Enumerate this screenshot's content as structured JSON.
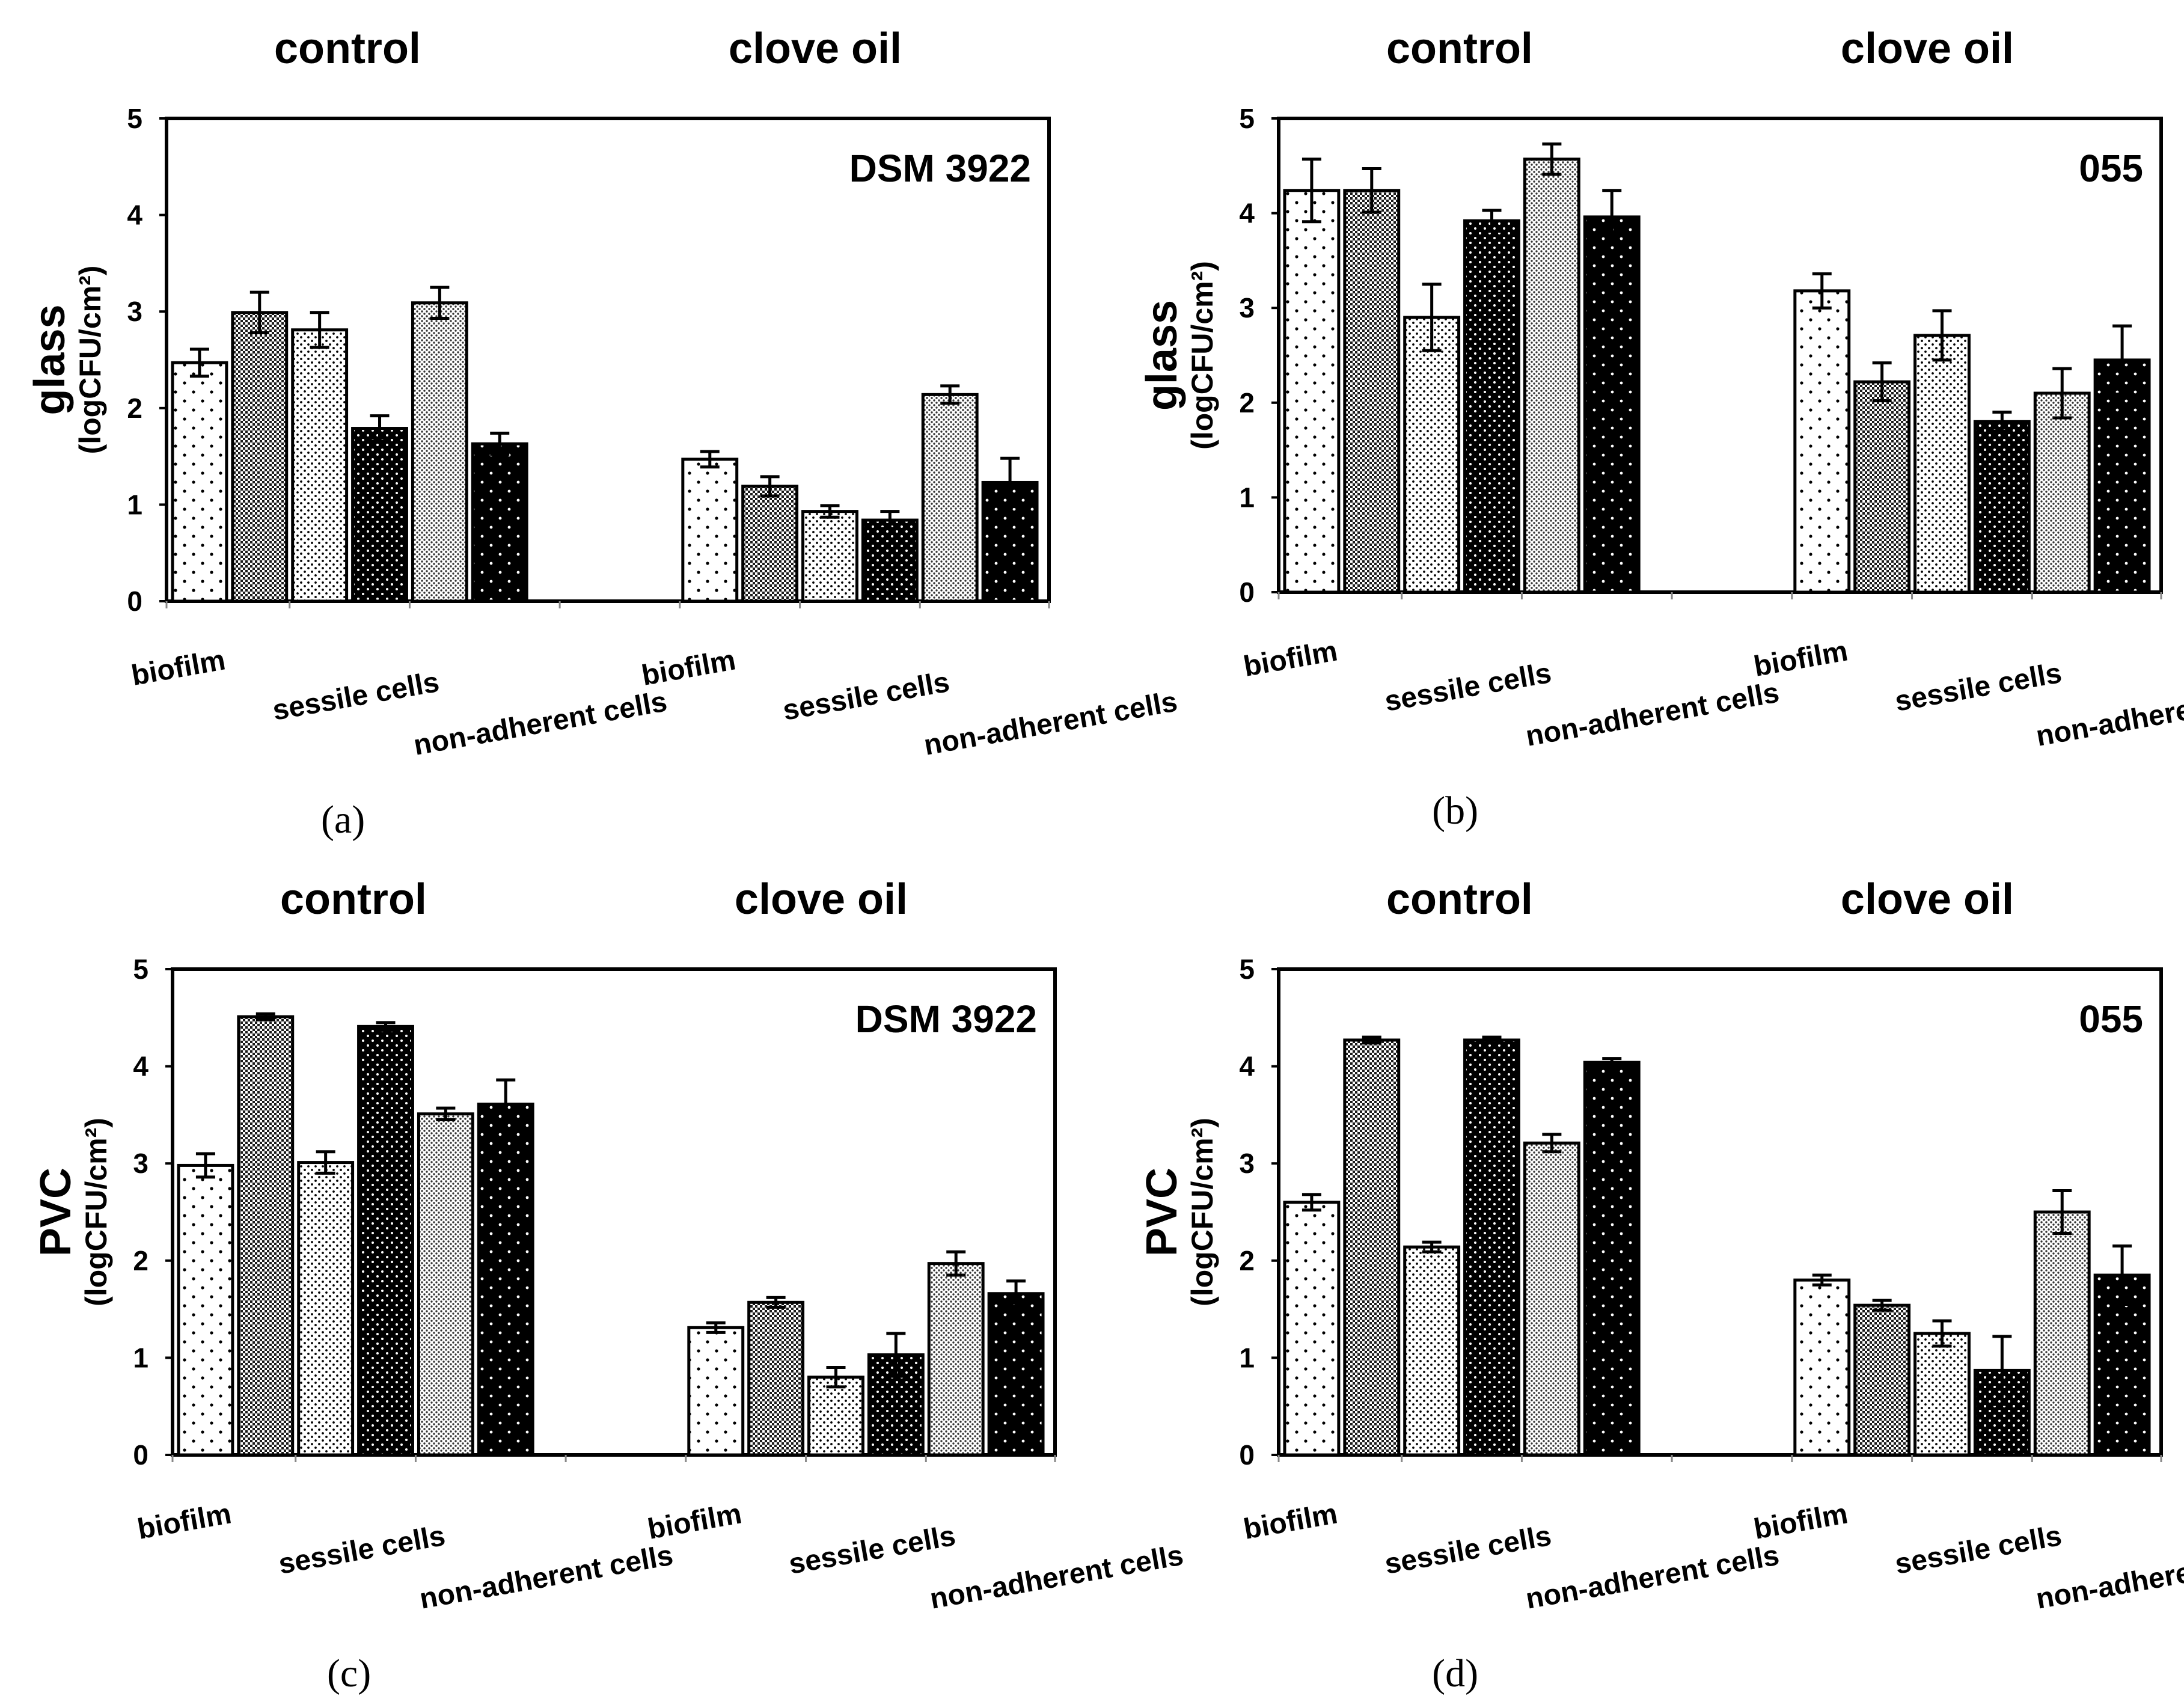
{
  "figure": {
    "group_labels": [
      "control",
      "clove oil"
    ],
    "bar_categories": [
      "biofilm",
      "sessile cells",
      "non-adherent cells"
    ],
    "pattern_legend": {
      "biofilm": [
        "sparse dots on white",
        "dense checker"
      ],
      "sessile cells": [
        "dense dots on white",
        "white dots on black"
      ],
      "non-adherent cells": [
        "medium checker",
        "sparse white dots on black"
      ]
    }
  },
  "chart_data": [
    {
      "panel": "(a)",
      "type": "bar",
      "strain": "DSM 3922",
      "title": "",
      "ylabel": "glass",
      "yunit": "(logCFU/cm²)",
      "ylim": [
        0,
        5
      ],
      "yticks": [
        0,
        1,
        2,
        3,
        4,
        5
      ],
      "groups": [
        {
          "label": "control",
          "categories": [
            {
              "label": "biofilm",
              "values": [
                2.47,
                2.99
              ],
              "errors": [
                0.14,
                0.21
              ]
            },
            {
              "label": "sessile cells",
              "values": [
                2.81,
                1.79
              ],
              "errors": [
                0.18,
                0.13
              ]
            },
            {
              "label": "non-adherent cells",
              "values": [
                3.09,
                1.63
              ],
              "errors": [
                0.16,
                0.11
              ]
            }
          ]
        },
        {
          "label": "clove oil",
          "categories": [
            {
              "label": "biofilm",
              "values": [
                1.47,
                1.19
              ],
              "errors": [
                0.08,
                0.1
              ]
            },
            {
              "label": "sessile cells",
              "values": [
                0.93,
                0.84
              ],
              "errors": [
                0.06,
                0.09
              ]
            },
            {
              "label": "non-adherent cells",
              "values": [
                2.14,
                1.23
              ],
              "errors": [
                0.09,
                0.25
              ]
            }
          ]
        }
      ]
    },
    {
      "panel": "(b)",
      "type": "bar",
      "strain": "055",
      "title": "",
      "ylabel": "glass",
      "yunit": "(logCFU/cm²)",
      "ylim": [
        0,
        5
      ],
      "yticks": [
        0,
        1,
        2,
        3,
        4,
        5
      ],
      "groups": [
        {
          "label": "control",
          "categories": [
            {
              "label": "biofilm",
              "values": [
                4.24,
                4.24
              ],
              "errors": [
                0.33,
                0.23
              ]
            },
            {
              "label": "sessile cells",
              "values": [
                2.9,
                3.92
              ],
              "errors": [
                0.35,
                0.11
              ]
            },
            {
              "label": "non-adherent cells",
              "values": [
                4.57,
                3.96
              ],
              "errors": [
                0.16,
                0.28
              ]
            }
          ]
        },
        {
          "label": "clove oil",
          "categories": [
            {
              "label": "biofilm",
              "values": [
                3.18,
                2.22
              ],
              "errors": [
                0.18,
                0.2
              ]
            },
            {
              "label": "sessile cells",
              "values": [
                2.71,
                1.8
              ],
              "errors": [
                0.26,
                0.1
              ]
            },
            {
              "label": "non-adherent cells",
              "values": [
                2.1,
                2.45
              ],
              "errors": [
                0.26,
                0.36
              ]
            }
          ]
        }
      ]
    },
    {
      "panel": "(c)",
      "type": "bar",
      "strain": "DSM 3922",
      "title": "",
      "ylabel": "PVC",
      "yunit": "(logCFU/cm²)",
      "ylim": [
        0,
        5
      ],
      "yticks": [
        0,
        1,
        2,
        3,
        4,
        5
      ],
      "groups": [
        {
          "label": "control",
          "categories": [
            {
              "label": "biofilm",
              "values": [
                2.98,
                4.51
              ],
              "errors": [
                0.12,
                0.03
              ]
            },
            {
              "label": "sessile cells",
              "values": [
                3.01,
                4.41
              ],
              "errors": [
                0.11,
                0.04
              ]
            },
            {
              "label": "non-adherent cells",
              "values": [
                3.51,
                3.61
              ],
              "errors": [
                0.06,
                0.25
              ]
            }
          ]
        },
        {
          "label": "clove oil",
          "categories": [
            {
              "label": "biofilm",
              "values": [
                1.31,
                1.57
              ],
              "errors": [
                0.05,
                0.05
              ]
            },
            {
              "label": "sessile cells",
              "values": [
                0.8,
                1.03
              ],
              "errors": [
                0.1,
                0.22
              ]
            },
            {
              "label": "non-adherent cells",
              "values": [
                1.97,
                1.66
              ],
              "errors": [
                0.12,
                0.13
              ]
            }
          ]
        }
      ]
    },
    {
      "panel": "(d)",
      "type": "bar",
      "strain": "055",
      "title": "",
      "ylabel": "PVC",
      "yunit": "(logCFU/cm²)",
      "ylim": [
        0,
        5
      ],
      "yticks": [
        0,
        1,
        2,
        3,
        4,
        5
      ],
      "groups": [
        {
          "label": "control",
          "categories": [
            {
              "label": "biofilm",
              "values": [
                2.6,
                4.27
              ],
              "errors": [
                0.08,
                0.03
              ]
            },
            {
              "label": "sessile cells",
              "values": [
                2.14,
                4.27
              ],
              "errors": [
                0.05,
                0.03
              ]
            },
            {
              "label": "non-adherent cells",
              "values": [
                3.21,
                4.04
              ],
              "errors": [
                0.09,
                0.04
              ]
            }
          ]
        },
        {
          "label": "clove oil",
          "categories": [
            {
              "label": "biofilm",
              "values": [
                1.8,
                1.54
              ],
              "errors": [
                0.05,
                0.05
              ]
            },
            {
              "label": "sessile cells",
              "values": [
                1.25,
                0.87
              ],
              "errors": [
                0.13,
                0.35
              ]
            },
            {
              "label": "non-adherent cells",
              "values": [
                2.5,
                1.85
              ],
              "errors": [
                0.22,
                0.3
              ]
            }
          ]
        }
      ]
    }
  ]
}
